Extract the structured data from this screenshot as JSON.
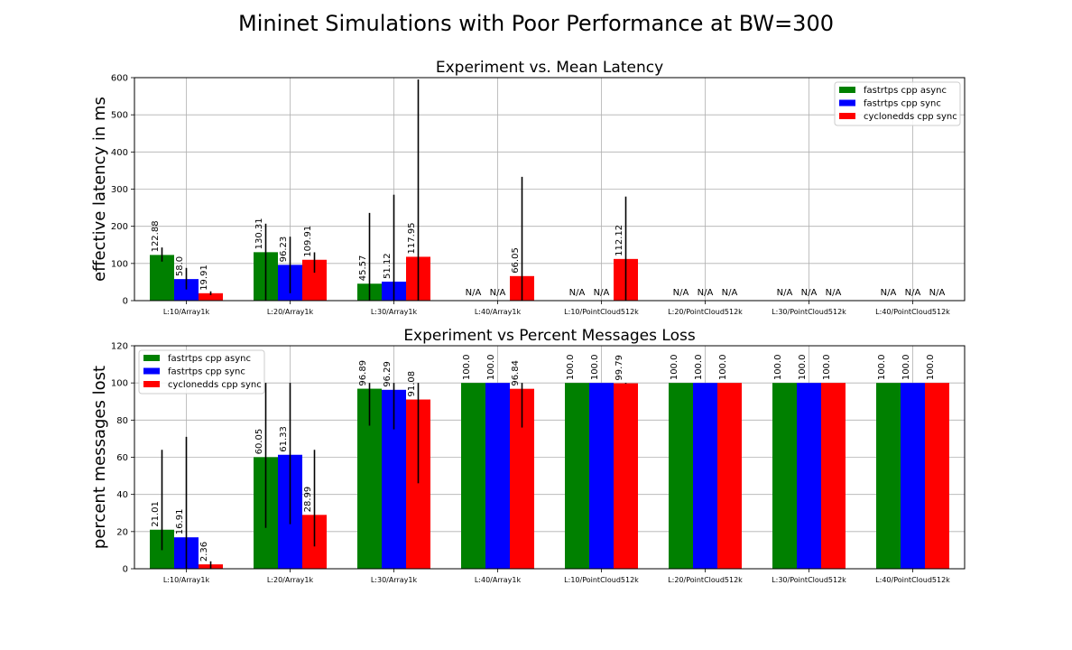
{
  "figure": {
    "suptitle": "Mininet Simulations with Poor Performance at BW=300"
  },
  "chart_data": [
    {
      "type": "bar",
      "title": "Experiment vs. Mean Latency",
      "xlabel": "",
      "ylabel": "effective latency in ms",
      "ylim": [
        0,
        600
      ],
      "yticks": [
        0,
        100,
        200,
        300,
        400,
        500,
        600
      ],
      "grid": true,
      "legend_position": "top-right",
      "categories": [
        "L:10/Array1k",
        "L:20/Array1k",
        "L:30/Array1k",
        "L:40/Array1k",
        "L:10/PointCloud512k",
        "L:20/PointCloud512k",
        "L:30/PointCloud512k",
        "L:40/PointCloud512k"
      ],
      "series": [
        {
          "name": "fastrtps cpp async",
          "color": "#008000",
          "values": [
            122.88,
            130.31,
            45.57,
            null,
            null,
            null,
            null,
            null
          ],
          "labels": [
            "122.88",
            "130.31",
            "45.57",
            "N/A",
            "N/A",
            "N/A",
            "N/A",
            "N/A"
          ],
          "err_low": [
            105,
            0,
            0,
            null,
            null,
            null,
            null,
            null
          ],
          "err_high": [
            143,
            207,
            236,
            null,
            null,
            null,
            null,
            null
          ]
        },
        {
          "name": "fastrtps cpp sync",
          "color": "#0000ff",
          "values": [
            58.0,
            96.23,
            51.12,
            null,
            null,
            null,
            null,
            null
          ],
          "labels": [
            "58.0",
            "96.23",
            "51.12",
            "N/A",
            "N/A",
            "N/A",
            "N/A",
            "N/A"
          ],
          "err_low": [
            30,
            20,
            0,
            null,
            null,
            null,
            null,
            null
          ],
          "err_high": [
            88,
            172,
            285,
            null,
            null,
            null,
            null,
            null
          ]
        },
        {
          "name": "cyclonedds cpp sync",
          "color": "#ff0000",
          "values": [
            19.91,
            109.91,
            117.95,
            66.05,
            112.12,
            null,
            null,
            null
          ],
          "labels": [
            "19.91",
            "109.91",
            "117.95",
            "66.05",
            "112.12",
            "N/A",
            "N/A",
            "N/A"
          ],
          "err_low": [
            15,
            75,
            0,
            0,
            0,
            null,
            null,
            null
          ],
          "err_high": [
            25,
            130,
            595,
            333,
            280,
            null,
            null,
            null
          ]
        }
      ]
    },
    {
      "type": "bar",
      "title": "Experiment vs Percent Messages Loss",
      "xlabel": "",
      "ylabel": "percent messages lost",
      "ylim": [
        0,
        120
      ],
      "yticks": [
        0,
        20,
        40,
        60,
        80,
        100,
        120
      ],
      "grid": true,
      "legend_position": "top-left",
      "categories": [
        "L:10/Array1k",
        "L:20/Array1k",
        "L:30/Array1k",
        "L:40/Array1k",
        "L:10/PointCloud512k",
        "L:20/PointCloud512k",
        "L:30/PointCloud512k",
        "L:40/PointCloud512k"
      ],
      "series": [
        {
          "name": "fastrtps cpp async",
          "color": "#008000",
          "values": [
            21.01,
            60.05,
            96.89,
            100.0,
            100.0,
            100.0,
            100.0,
            100.0
          ],
          "labels": [
            "21.01",
            "60.05",
            "96.89",
            "100.0",
            "100.0",
            "100.0",
            "100.0",
            "100.0"
          ],
          "err_low": [
            10,
            22,
            77,
            null,
            null,
            null,
            null,
            null
          ],
          "err_high": [
            64,
            100,
            100,
            null,
            null,
            null,
            null,
            null
          ]
        },
        {
          "name": "fastrtps cpp sync",
          "color": "#0000ff",
          "values": [
            16.91,
            61.33,
            96.29,
            100.0,
            100.0,
            100.0,
            100.0,
            100.0
          ],
          "labels": [
            "16.91",
            "61.33",
            "96.29",
            "100.0",
            "100.0",
            "100.0",
            "100.0",
            "100.0"
          ],
          "err_low": [
            0,
            24,
            75,
            null,
            null,
            null,
            null,
            null
          ],
          "err_high": [
            71,
            100,
            100,
            null,
            null,
            null,
            null,
            null
          ]
        },
        {
          "name": "cyclonedds cpp sync",
          "color": "#ff0000",
          "values": [
            2.36,
            28.99,
            91.08,
            96.84,
            99.79,
            100.0,
            100.0,
            100.0
          ],
          "labels": [
            "2.36",
            "28.99",
            "91.08",
            "96.84",
            "99.79",
            "100.0",
            "100.0",
            "100.0"
          ],
          "err_low": [
            0,
            12,
            46,
            76,
            99.6,
            null,
            null,
            null
          ],
          "err_high": [
            4,
            64,
            100,
            100,
            100,
            null,
            null,
            null
          ]
        }
      ]
    }
  ]
}
